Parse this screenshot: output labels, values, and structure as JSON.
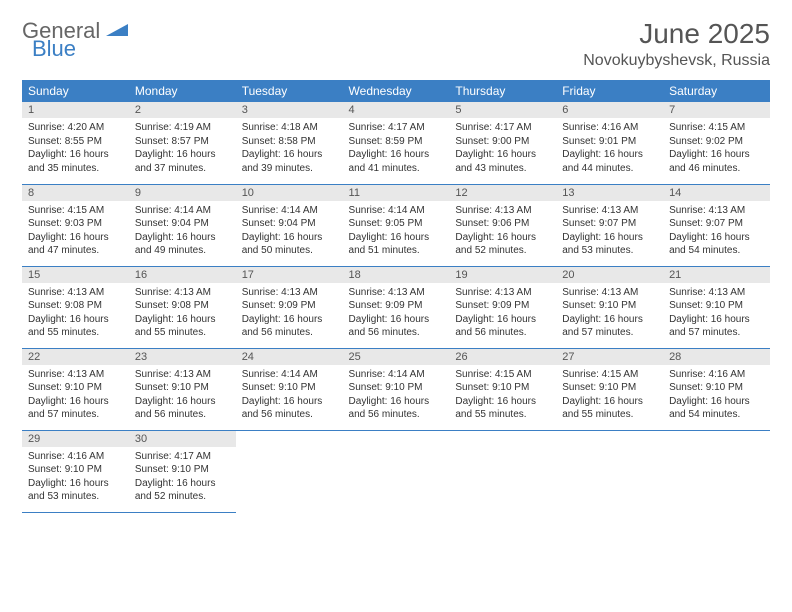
{
  "logo": {
    "text1": "General",
    "text2": "Blue"
  },
  "title": "June 2025",
  "location": "Novokuybyshevsk, Russia",
  "colors": {
    "header_bg": "#3b7fc4",
    "daynum_bg": "#e8e8e8",
    "border": "#3b7fc4",
    "text": "#333333"
  },
  "weekdays": [
    "Sunday",
    "Monday",
    "Tuesday",
    "Wednesday",
    "Thursday",
    "Friday",
    "Saturday"
  ],
  "days": [
    {
      "n": "1",
      "sr": "4:20 AM",
      "ss": "8:55 PM",
      "dl": "16 hours and 35 minutes."
    },
    {
      "n": "2",
      "sr": "4:19 AM",
      "ss": "8:57 PM",
      "dl": "16 hours and 37 minutes."
    },
    {
      "n": "3",
      "sr": "4:18 AM",
      "ss": "8:58 PM",
      "dl": "16 hours and 39 minutes."
    },
    {
      "n": "4",
      "sr": "4:17 AM",
      "ss": "8:59 PM",
      "dl": "16 hours and 41 minutes."
    },
    {
      "n": "5",
      "sr": "4:17 AM",
      "ss": "9:00 PM",
      "dl": "16 hours and 43 minutes."
    },
    {
      "n": "6",
      "sr": "4:16 AM",
      "ss": "9:01 PM",
      "dl": "16 hours and 44 minutes."
    },
    {
      "n": "7",
      "sr": "4:15 AM",
      "ss": "9:02 PM",
      "dl": "16 hours and 46 minutes."
    },
    {
      "n": "8",
      "sr": "4:15 AM",
      "ss": "9:03 PM",
      "dl": "16 hours and 47 minutes."
    },
    {
      "n": "9",
      "sr": "4:14 AM",
      "ss": "9:04 PM",
      "dl": "16 hours and 49 minutes."
    },
    {
      "n": "10",
      "sr": "4:14 AM",
      "ss": "9:04 PM",
      "dl": "16 hours and 50 minutes."
    },
    {
      "n": "11",
      "sr": "4:14 AM",
      "ss": "9:05 PM",
      "dl": "16 hours and 51 minutes."
    },
    {
      "n": "12",
      "sr": "4:13 AM",
      "ss": "9:06 PM",
      "dl": "16 hours and 52 minutes."
    },
    {
      "n": "13",
      "sr": "4:13 AM",
      "ss": "9:07 PM",
      "dl": "16 hours and 53 minutes."
    },
    {
      "n": "14",
      "sr": "4:13 AM",
      "ss": "9:07 PM",
      "dl": "16 hours and 54 minutes."
    },
    {
      "n": "15",
      "sr": "4:13 AM",
      "ss": "9:08 PM",
      "dl": "16 hours and 55 minutes."
    },
    {
      "n": "16",
      "sr": "4:13 AM",
      "ss": "9:08 PM",
      "dl": "16 hours and 55 minutes."
    },
    {
      "n": "17",
      "sr": "4:13 AM",
      "ss": "9:09 PM",
      "dl": "16 hours and 56 minutes."
    },
    {
      "n": "18",
      "sr": "4:13 AM",
      "ss": "9:09 PM",
      "dl": "16 hours and 56 minutes."
    },
    {
      "n": "19",
      "sr": "4:13 AM",
      "ss": "9:09 PM",
      "dl": "16 hours and 56 minutes."
    },
    {
      "n": "20",
      "sr": "4:13 AM",
      "ss": "9:10 PM",
      "dl": "16 hours and 57 minutes."
    },
    {
      "n": "21",
      "sr": "4:13 AM",
      "ss": "9:10 PM",
      "dl": "16 hours and 57 minutes."
    },
    {
      "n": "22",
      "sr": "4:13 AM",
      "ss": "9:10 PM",
      "dl": "16 hours and 57 minutes."
    },
    {
      "n": "23",
      "sr": "4:13 AM",
      "ss": "9:10 PM",
      "dl": "16 hours and 56 minutes."
    },
    {
      "n": "24",
      "sr": "4:14 AM",
      "ss": "9:10 PM",
      "dl": "16 hours and 56 minutes."
    },
    {
      "n": "25",
      "sr": "4:14 AM",
      "ss": "9:10 PM",
      "dl": "16 hours and 56 minutes."
    },
    {
      "n": "26",
      "sr": "4:15 AM",
      "ss": "9:10 PM",
      "dl": "16 hours and 55 minutes."
    },
    {
      "n": "27",
      "sr": "4:15 AM",
      "ss": "9:10 PM",
      "dl": "16 hours and 55 minutes."
    },
    {
      "n": "28",
      "sr": "4:16 AM",
      "ss": "9:10 PM",
      "dl": "16 hours and 54 minutes."
    },
    {
      "n": "29",
      "sr": "4:16 AM",
      "ss": "9:10 PM",
      "dl": "16 hours and 53 minutes."
    },
    {
      "n": "30",
      "sr": "4:17 AM",
      "ss": "9:10 PM",
      "dl": "16 hours and 52 minutes."
    }
  ],
  "labels": {
    "sunrise": "Sunrise: ",
    "sunset": "Sunset: ",
    "daylight": "Daylight: "
  }
}
